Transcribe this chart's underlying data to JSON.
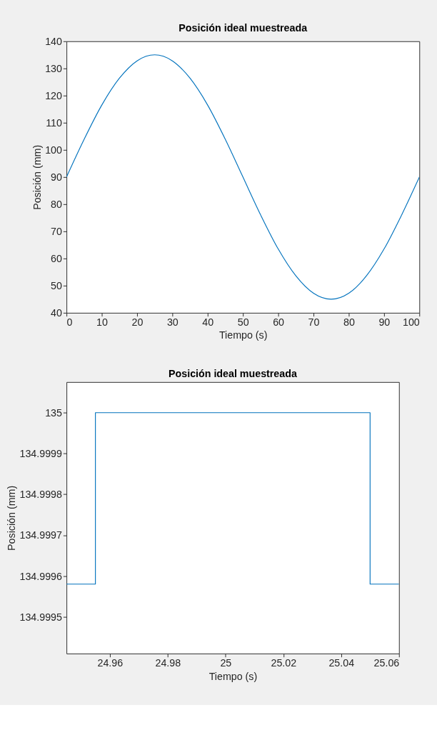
{
  "chart_data": [
    {
      "type": "line",
      "title": "Posición ideal muestreada",
      "xlabel": "Tiempo (s)",
      "ylabel": "Posición (mm)",
      "x": [
        0,
        5,
        10,
        15,
        20,
        25,
        30,
        35,
        40,
        45,
        50,
        55,
        60,
        65,
        70,
        75,
        80,
        85,
        90,
        95,
        100
      ],
      "series": [
        {
          "color": "#0072bd",
          "values": [
            90,
            103.9,
            116.5,
            126.4,
            132.8,
            135,
            132.8,
            126.4,
            116.5,
            103.9,
            90,
            76.1,
            63.5,
            53.6,
            47.2,
            45,
            47.2,
            53.6,
            63.5,
            76.1,
            90
          ]
        }
      ],
      "xlim": [
        0,
        100
      ],
      "xticks": [
        0,
        10,
        20,
        30,
        40,
        50,
        60,
        70,
        80,
        90,
        100
      ],
      "ylim": [
        40,
        140
      ],
      "yticks": [
        40,
        50,
        60,
        70,
        80,
        90,
        100,
        110,
        120,
        130,
        140
      ],
      "grid": false
    },
    {
      "type": "step",
      "title": "Posición ideal muestreada",
      "xlabel": "Tiempo (s)",
      "ylabel": "Posición (mm)",
      "x": [
        24.945,
        24.955,
        25.05,
        25.06
      ],
      "series": [
        {
          "color": "#0072bd",
          "values": [
            134.99958,
            135,
            134.99958,
            134.99958
          ]
        }
      ],
      "xlim": [
        24.945,
        25.06
      ],
      "xticks": [
        24.96,
        24.98,
        25,
        25.02,
        25.04,
        25.06
      ],
      "ylim": [
        134.99941,
        135.000075
      ],
      "yticks": [
        134.9995,
        134.9996,
        134.9997,
        134.9998,
        134.9999,
        135
      ],
      "grid": false
    }
  ]
}
